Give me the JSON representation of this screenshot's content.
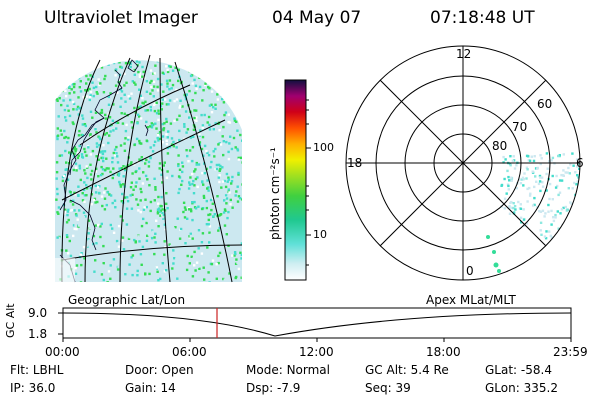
{
  "header": {
    "title": "Ultraviolet Imager",
    "date": "04 May 07",
    "time": "07:18:48 UT"
  },
  "colorbar": {
    "unit_label": "photon cm⁻²s⁻¹",
    "ticks": [
      "100",
      "10"
    ]
  },
  "polar": {
    "mlt_labels": {
      "top": "12",
      "left": "18",
      "right": "6",
      "bottom": "0"
    },
    "lat_labels": [
      "60",
      "70",
      "80"
    ]
  },
  "panel_labels": {
    "left": "Geographic Lat/Lon",
    "right": "Apex MLat/MLT"
  },
  "altitude_plot": {
    "ylabel": "GC Alt",
    "y_ticks": [
      "9.0",
      "1.8"
    ],
    "x_ticks": [
      "00:00",
      "06:00",
      "12:00",
      "18:00",
      "23:59"
    ],
    "marker_time": "07:18:48"
  },
  "status": {
    "row1": [
      {
        "label": "Flt:",
        "value": "LBHL"
      },
      {
        "label": "Door:",
        "value": "Open"
      },
      {
        "label": "Mode:",
        "value": "Normal"
      },
      {
        "label": "GC Alt:",
        "value": "5.4 Re"
      },
      {
        "label": "GLat:",
        "value": "-58.4"
      }
    ],
    "row2": [
      {
        "label": "IP:",
        "value": "36.0"
      },
      {
        "label": "Gain:",
        "value": "14"
      },
      {
        "label": "Dsp:",
        "value": "-7.9"
      },
      {
        "label": "Seq:",
        "value": "39"
      },
      {
        "label": "GLon:",
        "value": "335.2"
      }
    ]
  },
  "colors": {
    "speckle_green": "#33dd55",
    "speckle_cyan": "#44ddcc",
    "speckle_pale": "#cce8f0",
    "marker": "#cc2222"
  }
}
